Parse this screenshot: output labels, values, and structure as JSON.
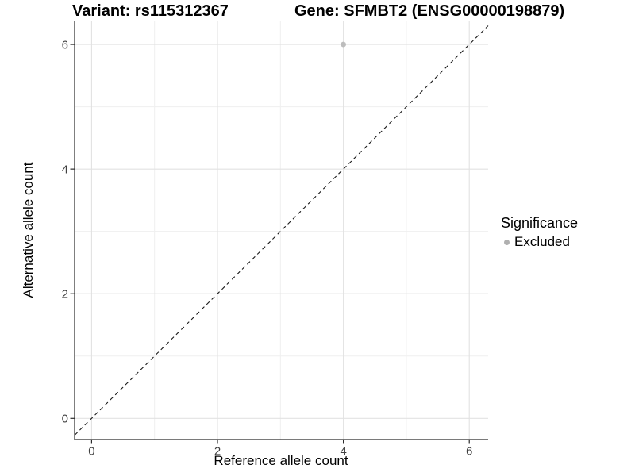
{
  "chart_data": {
    "type": "scatter",
    "title_left": "Variant: rs115312367",
    "title_right": "Gene: SFMBT2 (ENSG00000198879)",
    "xlabel": "Reference allele count",
    "ylabel": "Alternative allele count",
    "xlim": [
      -0.27,
      6.3
    ],
    "ylim": [
      -0.34,
      6.37
    ],
    "x_major_ticks": [
      0,
      2,
      4,
      6
    ],
    "y_major_ticks": [
      0,
      2,
      4,
      6
    ],
    "x_minor_gridlines": [
      1,
      3,
      5
    ],
    "y_minor_gridlines": [
      1,
      3,
      5
    ],
    "grid": "major+minor",
    "reference_line": {
      "type": "identity y=x",
      "style": "dashed",
      "color": "#1a1a1a"
    },
    "series": [
      {
        "name": "Excluded",
        "marker": "circle",
        "color": "#bdbdbd",
        "points": [
          {
            "x": 4,
            "y": 6
          }
        ]
      }
    ],
    "legend": {
      "title": "Significance",
      "position": "right",
      "items": [
        {
          "label": "Excluded",
          "marker": "circle",
          "color": "#b0b0b0"
        }
      ]
    }
  },
  "colors": {
    "background": "#ffffff",
    "gridline_major": "#e2e2e2",
    "gridline_minor": "#efefef",
    "axis_line": "#2b2b2b",
    "tick_mark": "#2b2b2b",
    "tick_label": "#404040"
  }
}
